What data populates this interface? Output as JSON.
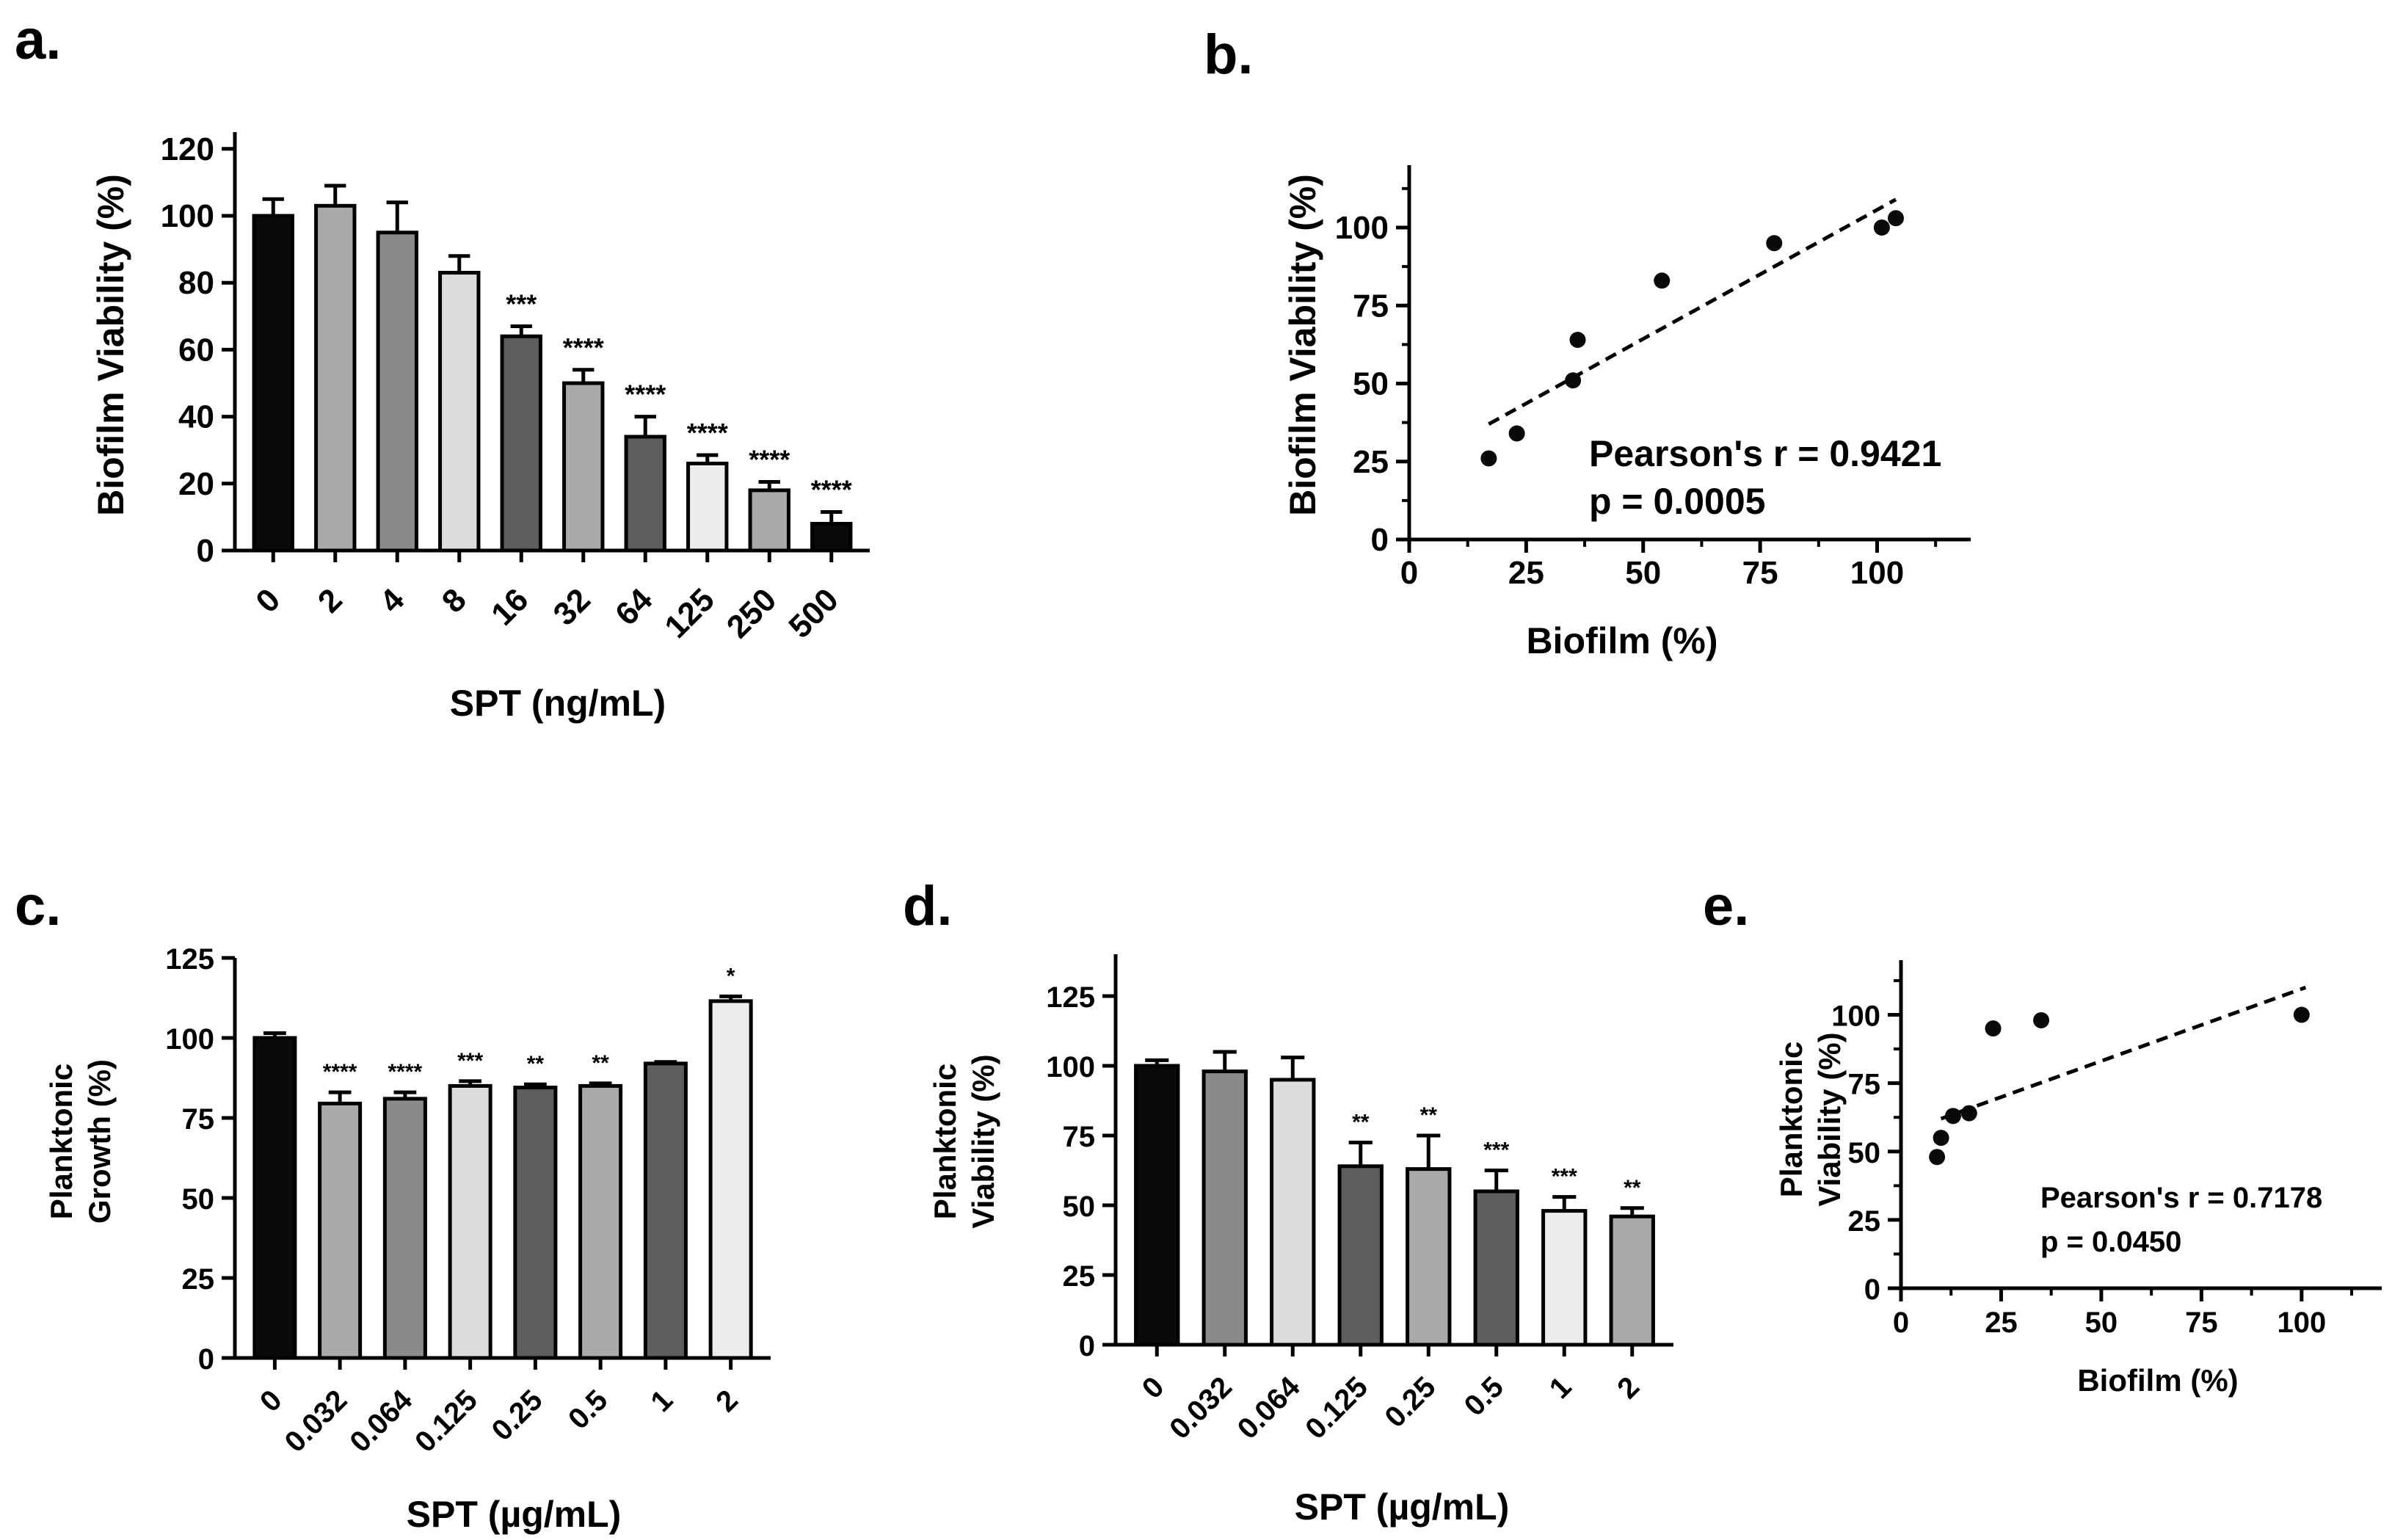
{
  "colors": {
    "black": "#0a0a0a",
    "dark": "#5e5e5e",
    "mid": "#8a8a8a",
    "light": "#a9a9a9",
    "pale": "#dcdcdc",
    "palest": "#ececec",
    "stroke": "#000000"
  },
  "chart_data": [
    {
      "panel": "a.",
      "type": "bar",
      "xlabel": "SPT (ng/mL)",
      "ylabel": "Biofilm Viability (%)",
      "ylim": [
        0,
        125
      ],
      "yticks": [
        "0",
        "20",
        "40",
        "60",
        "80",
        "100",
        "120"
      ],
      "categories": [
        "0",
        "2",
        "4",
        "8",
        "16",
        "32",
        "64",
        "125",
        "250",
        "500"
      ],
      "values": [
        100,
        103,
        95,
        83,
        64,
        50,
        34,
        26,
        18,
        8
      ],
      "errors": [
        5,
        6,
        9,
        5,
        3,
        4,
        6,
        2.5,
        2.5,
        3.5
      ],
      "significance": [
        "",
        "",
        "",
        "",
        "***",
        "****",
        "****",
        "****",
        "****",
        "****"
      ],
      "fills": [
        "black",
        "light",
        "mid",
        "pale",
        "dark",
        "light",
        "dark",
        "palest",
        "light",
        "black"
      ]
    },
    {
      "panel": "b.",
      "type": "scatter",
      "xlabel": "Biofilm (%)",
      "ylabel": "Biofilm Viability (%)",
      "xlim": [
        0,
        120
      ],
      "ylim": [
        0,
        120
      ],
      "xticks": [
        "0",
        "25",
        "50",
        "75",
        "100"
      ],
      "yticks": [
        "0",
        "25",
        "50",
        "75",
        "100"
      ],
      "points": [
        [
          17,
          26
        ],
        [
          23,
          34
        ],
        [
          35,
          51
        ],
        [
          36,
          64
        ],
        [
          54,
          83
        ],
        [
          78,
          95
        ],
        [
          101,
          100
        ],
        [
          104,
          103
        ]
      ],
      "fit_line": [
        [
          17,
          37
        ],
        [
          104,
          109
        ]
      ],
      "annotation": [
        "Pearson's  r = 0.9421",
        "p = 0.0005"
      ]
    },
    {
      "panel": "c.",
      "type": "bar",
      "xlabel": "SPT (µg/mL)",
      "ylabel": [
        "Planktonic",
        "Growth (%)"
      ],
      "ylim": [
        0,
        125
      ],
      "yticks": [
        "0",
        "25",
        "50",
        "75",
        "100",
        "125"
      ],
      "categories": [
        "0",
        "0.032",
        "0.064",
        "0.125",
        "0.25",
        "0.5",
        "1",
        "2"
      ],
      "values": [
        100,
        79.5,
        81,
        85,
        84.5,
        85,
        92,
        111.5
      ],
      "errors": [
        1.5,
        3.5,
        2,
        1.5,
        1,
        0.8,
        0.5,
        1.5
      ],
      "significance": [
        "",
        "****",
        "****",
        "***",
        "**",
        "**",
        "",
        "*"
      ],
      "fills": [
        "black",
        "light",
        "mid",
        "pale",
        "dark",
        "light",
        "dark",
        "palest"
      ]
    },
    {
      "panel": "d.",
      "type": "bar",
      "xlabel": "SPT (µg/mL)",
      "ylabel": [
        "Planktonic",
        "Viability (%)"
      ],
      "ylim": [
        0,
        140
      ],
      "yticks": [
        "0",
        "25",
        "50",
        "75",
        "100",
        "125"
      ],
      "categories": [
        "0",
        "0.032",
        "0.064",
        "0.125",
        "0.25",
        "0.5",
        "1",
        "2"
      ],
      "values": [
        100,
        98,
        95,
        64,
        63,
        55,
        48,
        46
      ],
      "errors": [
        2,
        7,
        8,
        8.5,
        12,
        7.5,
        5,
        3
      ],
      "significance": [
        "",
        "",
        "",
        "**",
        "**",
        "***",
        "***",
        "**"
      ],
      "fills": [
        "black",
        "mid",
        "pale",
        "dark",
        "light",
        "dark",
        "palest",
        "light"
      ]
    },
    {
      "panel": "e.",
      "type": "scatter",
      "xlabel": "Biofilm (%)",
      "ylabel": [
        "Planktonic",
        "Viability (%)"
      ],
      "xlim": [
        0,
        120
      ],
      "ylim": [
        0,
        120
      ],
      "xticks": [
        "0",
        "25",
        "50",
        "75",
        "100"
      ],
      "yticks": [
        "0",
        "25",
        "50",
        "75",
        "100"
      ],
      "points": [
        [
          9,
          48
        ],
        [
          10,
          55
        ],
        [
          13,
          63
        ],
        [
          17,
          64
        ],
        [
          23,
          95
        ],
        [
          35,
          98
        ],
        [
          100,
          100
        ]
      ],
      "fit_line": [
        [
          10,
          62
        ],
        [
          101,
          110
        ]
      ],
      "annotation": [
        "Pearson's  r = 0.7178",
        "p = 0.0450"
      ]
    }
  ]
}
